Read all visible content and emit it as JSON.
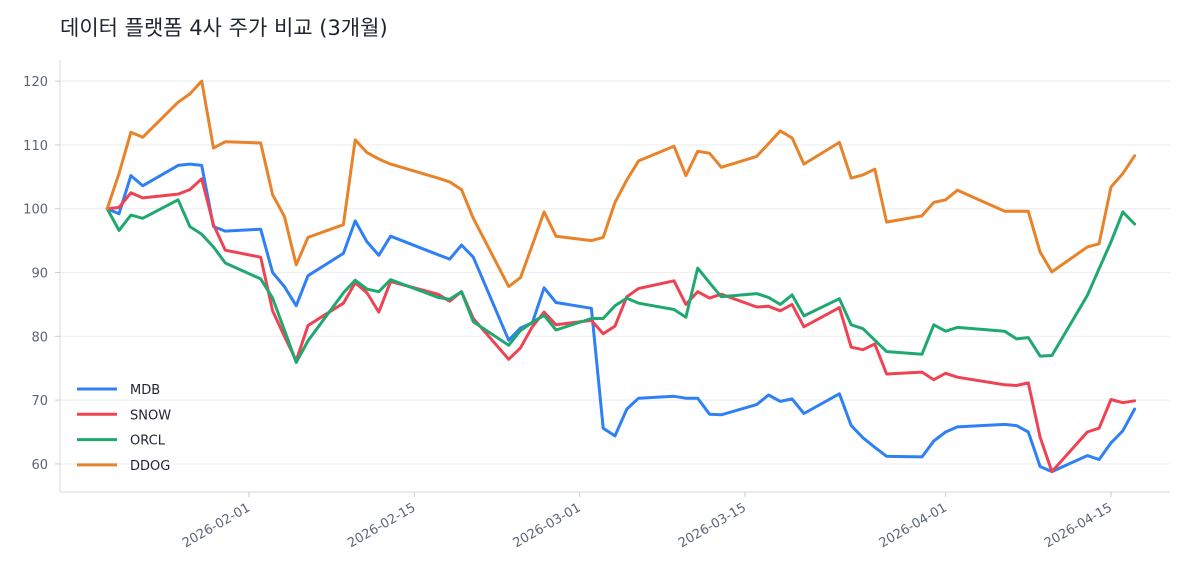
{
  "chart_data": {
    "type": "line",
    "title": "데이터 플랫폼 4사 주가 비교 (3개월)",
    "xlabel": "",
    "ylabel": "",
    "ylim": [
      55.6,
      123
    ],
    "xlim": [
      "2026-01-16",
      "2026-04-20"
    ],
    "grid": "horizontal",
    "legend_position": "lower-left",
    "yticks": [
      60,
      70,
      80,
      90,
      100,
      110,
      120
    ],
    "xticks": [
      "2026-02-01",
      "2026-02-15",
      "2026-03-01",
      "2026-03-15",
      "2026-04-01",
      "2026-04-15"
    ],
    "x": [
      "2026-01-20",
      "2026-01-21",
      "2026-01-22",
      "2026-01-23",
      "2026-01-26",
      "2026-01-27",
      "2026-01-28",
      "2026-01-29",
      "2026-01-30",
      "2026-02-02",
      "2026-02-03",
      "2026-02-04",
      "2026-02-05",
      "2026-02-06",
      "2026-02-09",
      "2026-02-10",
      "2026-02-11",
      "2026-02-12",
      "2026-02-13",
      "2026-02-17",
      "2026-02-18",
      "2026-02-19",
      "2026-02-20",
      "2026-02-23",
      "2026-02-24",
      "2026-02-25",
      "2026-02-26",
      "2026-02-27",
      "2026-03-02",
      "2026-03-03",
      "2026-03-04",
      "2026-03-05",
      "2026-03-06",
      "2026-03-09",
      "2026-03-10",
      "2026-03-11",
      "2026-03-12",
      "2026-03-13",
      "2026-03-16",
      "2026-03-17",
      "2026-03-18",
      "2026-03-19",
      "2026-03-20",
      "2026-03-23",
      "2026-03-24",
      "2026-03-25",
      "2026-03-26",
      "2026-03-27",
      "2026-03-30",
      "2026-03-31",
      "2026-04-01",
      "2026-04-02",
      "2026-04-06",
      "2026-04-07",
      "2026-04-08",
      "2026-04-09",
      "2026-04-10",
      "2026-04-13",
      "2026-04-14",
      "2026-04-15",
      "2026-04-16",
      "2026-04-17"
    ],
    "series": [
      {
        "name": "MDB",
        "color": "#2f80f5",
        "values": [
          100,
          99.2,
          105.2,
          103.6,
          106.8,
          107,
          106.8,
          97.2,
          96.5,
          96.8,
          90,
          87.8,
          84.8,
          89.5,
          93,
          98.1,
          94.8,
          92.7,
          95.7,
          92.8,
          92.1,
          94.3,
          92.4,
          79.4,
          81.3,
          82.1,
          87.6,
          85.3,
          84.4,
          65.6,
          64.4,
          68.6,
          70.3,
          70.6,
          70.3,
          70.3,
          67.8,
          67.7,
          69.3,
          70.8,
          69.8,
          70.2,
          67.9,
          71,
          66,
          64.1,
          62.6,
          61.2,
          61.1,
          63.6,
          65,
          65.8,
          66.2,
          66,
          65,
          59.6,
          58.8,
          61.3,
          60.7,
          63.3,
          65.2,
          68.6
        ]
      },
      {
        "name": "SNOW",
        "color": "#ee4353",
        "values": [
          100,
          100.2,
          102.5,
          101.7,
          102.3,
          103,
          104.7,
          97.5,
          93.5,
          92.4,
          84,
          80,
          76.2,
          81.7,
          85.2,
          88.4,
          86.8,
          83.8,
          88.6,
          86.6,
          85.5,
          87,
          82.8,
          76.4,
          78.2,
          81.5,
          83.8,
          81.8,
          82.5,
          80.4,
          81.6,
          86.2,
          87.5,
          88.7,
          85,
          87,
          86,
          86.6,
          84.6,
          84.7,
          84,
          85,
          81.5,
          84.5,
          78.3,
          77.9,
          78.8,
          74.1,
          74.4,
          73.2,
          74.2,
          73.6,
          72.4,
          72.3,
          72.7,
          64.2,
          58.8,
          65,
          65.6,
          70.1,
          69.6,
          69.9
        ]
      },
      {
        "name": "ORCL",
        "color": "#1fa971",
        "values": [
          100,
          96.6,
          99,
          98.5,
          101.4,
          97.2,
          96,
          94,
          91.5,
          89,
          86,
          81,
          75.9,
          79.3,
          86.8,
          88.8,
          87.4,
          87,
          88.9,
          86.1,
          85.8,
          87,
          82.3,
          78.6,
          80.9,
          82.2,
          83.3,
          81,
          82.8,
          82.8,
          84.8,
          86,
          85.2,
          84.2,
          83,
          90.7,
          88.4,
          86.2,
          86.7,
          86.1,
          85,
          86.5,
          83.2,
          85.9,
          81.8,
          81.2,
          79.4,
          77.6,
          77.2,
          81.8,
          80.8,
          81.4,
          80.8,
          79.6,
          79.8,
          76.9,
          77,
          86.4,
          90.6,
          94.8,
          99.5,
          97.6
        ]
      },
      {
        "name": "DDOG",
        "color": "#e8832a",
        "values": [
          100,
          105.5,
          112,
          111.2,
          116.7,
          118,
          120,
          109.5,
          110.5,
          110.3,
          102.2,
          98.8,
          91.2,
          95.5,
          97.5,
          110.8,
          108.8,
          107.8,
          107,
          104.8,
          104.2,
          103,
          98.5,
          87.8,
          89.2,
          94.3,
          99.5,
          95.7,
          95,
          95.5,
          101,
          104.5,
          107.5,
          109.8,
          105.2,
          109,
          108.7,
          106.5,
          108.2,
          110.2,
          112.2,
          111.1,
          107,
          110.4,
          104.8,
          105.3,
          106.2,
          97.9,
          98.9,
          101,
          101.4,
          102.9,
          99.6,
          99.6,
          99.6,
          93.2,
          90.1,
          94,
          94.5,
          103.4,
          105.5,
          108.3
        ]
      }
    ]
  }
}
